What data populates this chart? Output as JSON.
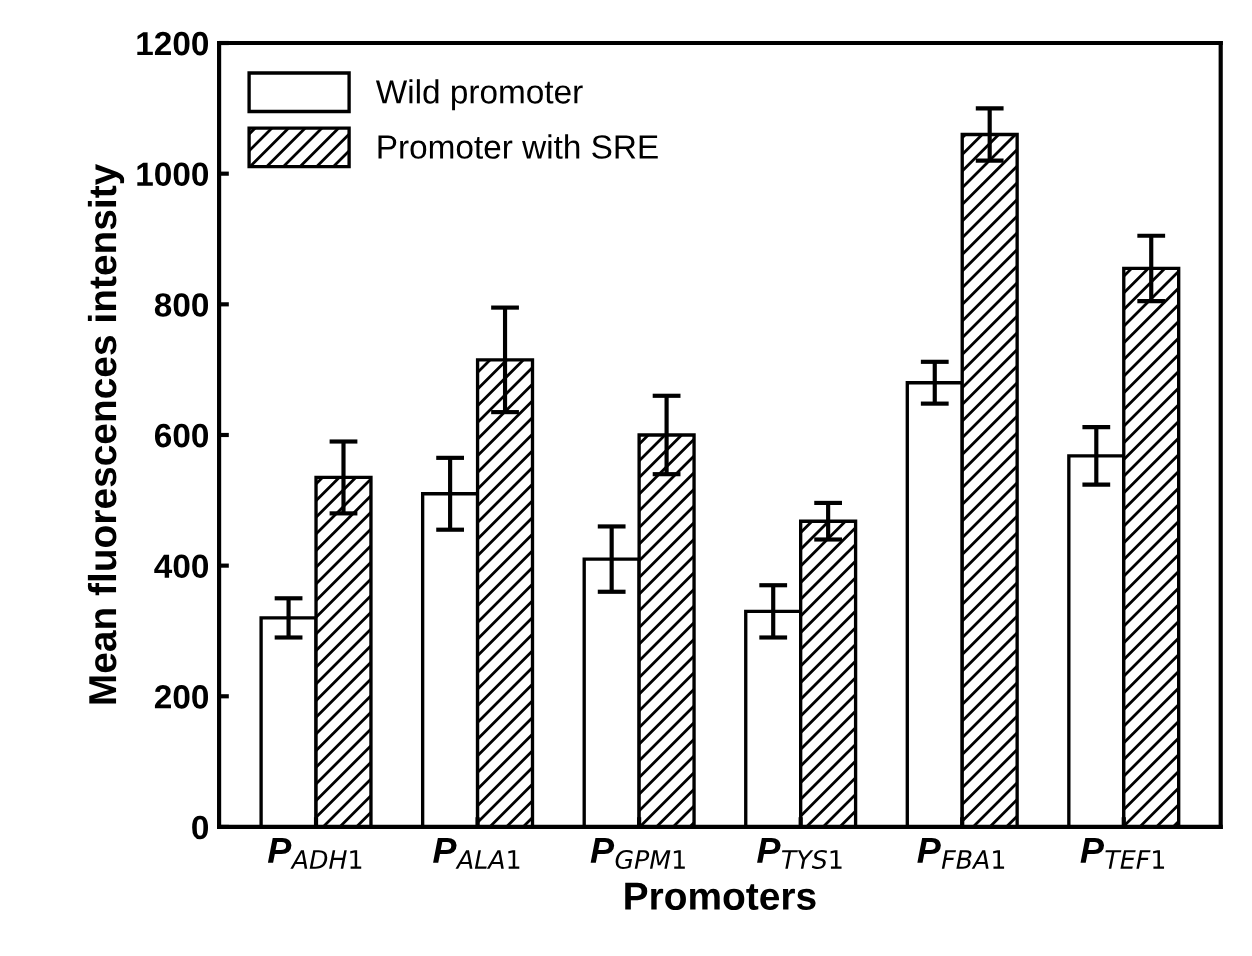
{
  "chart_data": {
    "type": "bar",
    "xlabel": "Promoters",
    "ylabel": "Mean fluorescences intensity",
    "categories": [
      "P$_{ADH1}$",
      "P$_{ALA1}$",
      "P$_{GPM1}$",
      "P$_{TYS1}$",
      "P$_{FBA1}$",
      "P$_{TEF1}$"
    ],
    "series": [
      {
        "name": "Wild promoter",
        "color": "#ffffff",
        "values": [
          320,
          510,
          410,
          330,
          680,
          568
        ],
        "errors": [
          30,
          55,
          50,
          40,
          32,
          44
        ]
      },
      {
        "name": "Promoter with SRE",
        "color": "#000000",
        "values": [
          535,
          715,
          600,
          468,
          1060,
          855
        ],
        "errors": [
          55,
          80,
          60,
          28,
          40,
          50
        ]
      }
    ],
    "ylim": [
      0,
      1200
    ],
    "yticks": [
      0,
      200,
      400,
      600,
      800,
      1000,
      1200
    ],
    "grid": false,
    "legend": "top left"
  }
}
